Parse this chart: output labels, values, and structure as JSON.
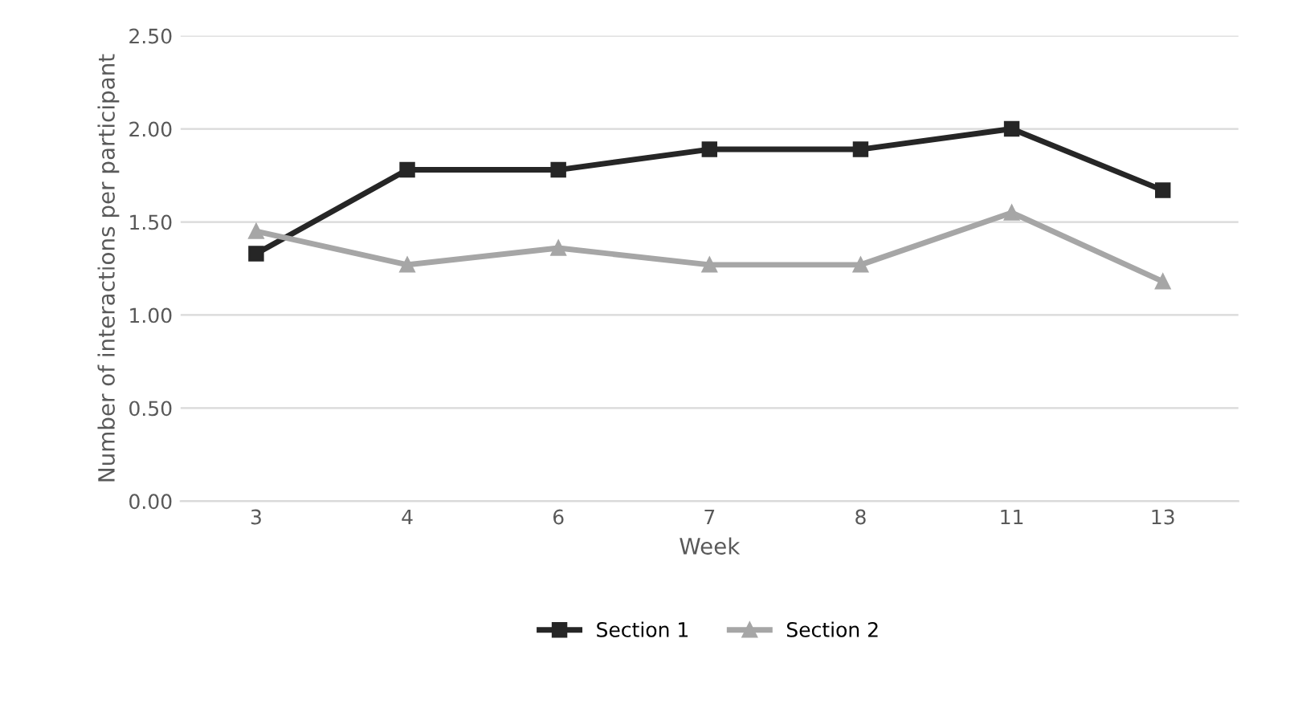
{
  "chart_data": {
    "type": "line",
    "xlabel": "Week",
    "ylabel": "Number of interactions per participant",
    "categories": [
      "3",
      "4",
      "6",
      "7",
      "8",
      "11",
      "13"
    ],
    "series": [
      {
        "name": "Section 1",
        "color": "#262626",
        "marker": "square",
        "values": [
          1.33,
          1.78,
          1.78,
          1.89,
          1.89,
          2.0,
          1.67
        ]
      },
      {
        "name": "Section 2",
        "color": "#a6a6a6",
        "marker": "triangle",
        "values": [
          1.45,
          1.27,
          1.36,
          1.27,
          1.27,
          1.55,
          1.18
        ]
      }
    ],
    "ylim": [
      0,
      2.5
    ],
    "yticks": [
      {
        "value": 0,
        "label": "0.00"
      },
      {
        "value": 0.5,
        "label": "0.50"
      },
      {
        "value": 1,
        "label": "1.00"
      },
      {
        "value": 1.5,
        "label": "1.50"
      },
      {
        "value": 2,
        "label": "2.00"
      },
      {
        "value": 2.5,
        "label": "2.50"
      }
    ],
    "grid": "y",
    "legend": "bottom",
    "line_style": "solid"
  }
}
